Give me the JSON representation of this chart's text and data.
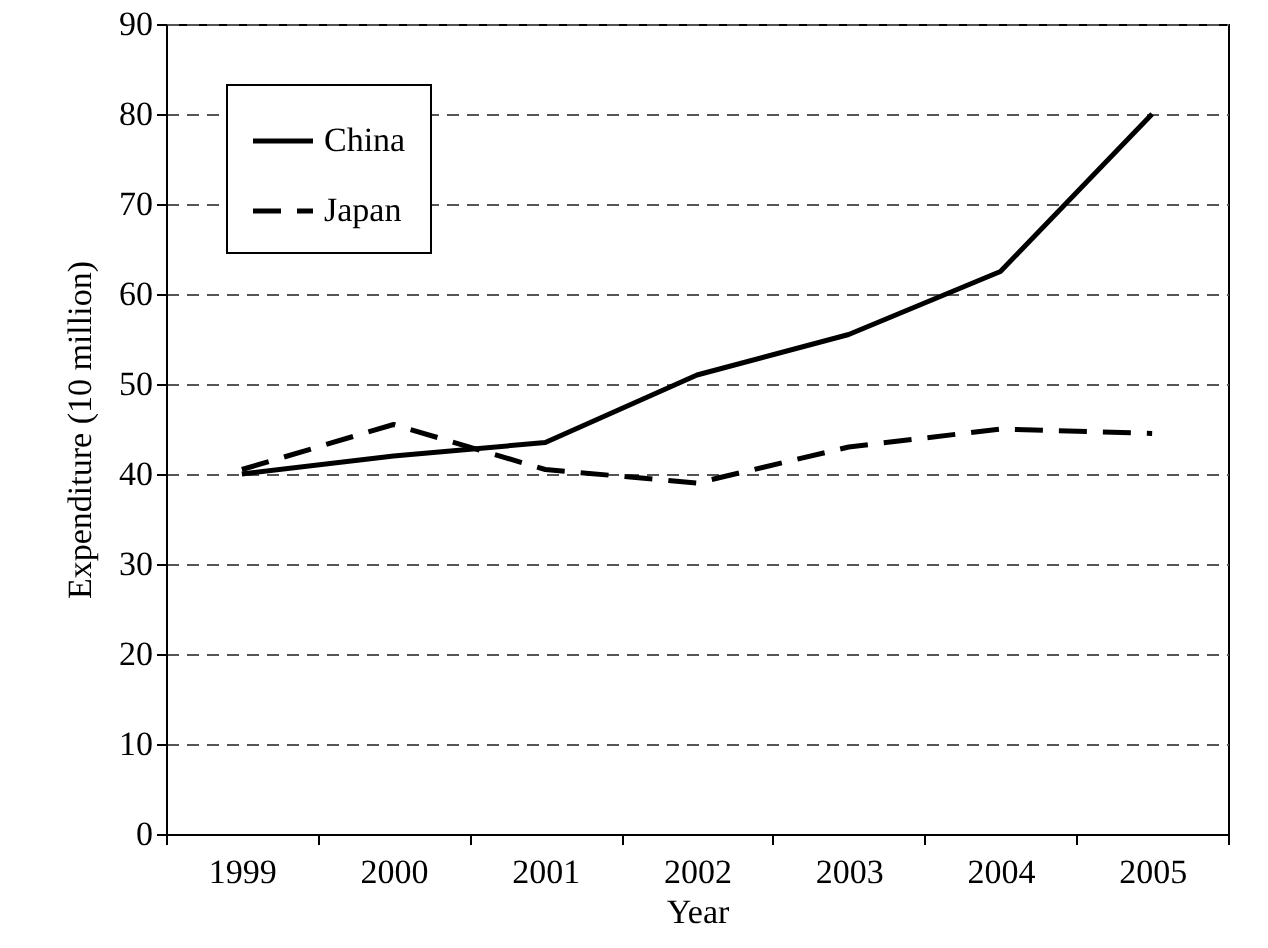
{
  "chart_data": {
    "type": "line",
    "xlabel": "Year",
    "ylabel": "Expenditure (10 million)",
    "categories": [
      "1999",
      "2000",
      "2001",
      "2002",
      "2003",
      "2004",
      "2005"
    ],
    "series": [
      {
        "name": "China",
        "color": "#000000",
        "line_style": "solid",
        "values": [
          40,
          42,
          43.5,
          51,
          55.5,
          62.5,
          80
        ]
      },
      {
        "name": "Japan",
        "color": "#000000",
        "line_style": "dashed",
        "values": [
          40.5,
          45.5,
          40.5,
          39,
          43,
          45,
          44.5
        ]
      }
    ],
    "ylim": [
      0,
      90
    ],
    "yticks": [
      0,
      10,
      20,
      30,
      40,
      50,
      60,
      70,
      80,
      90
    ],
    "grid": "y",
    "legend": "top left"
  }
}
